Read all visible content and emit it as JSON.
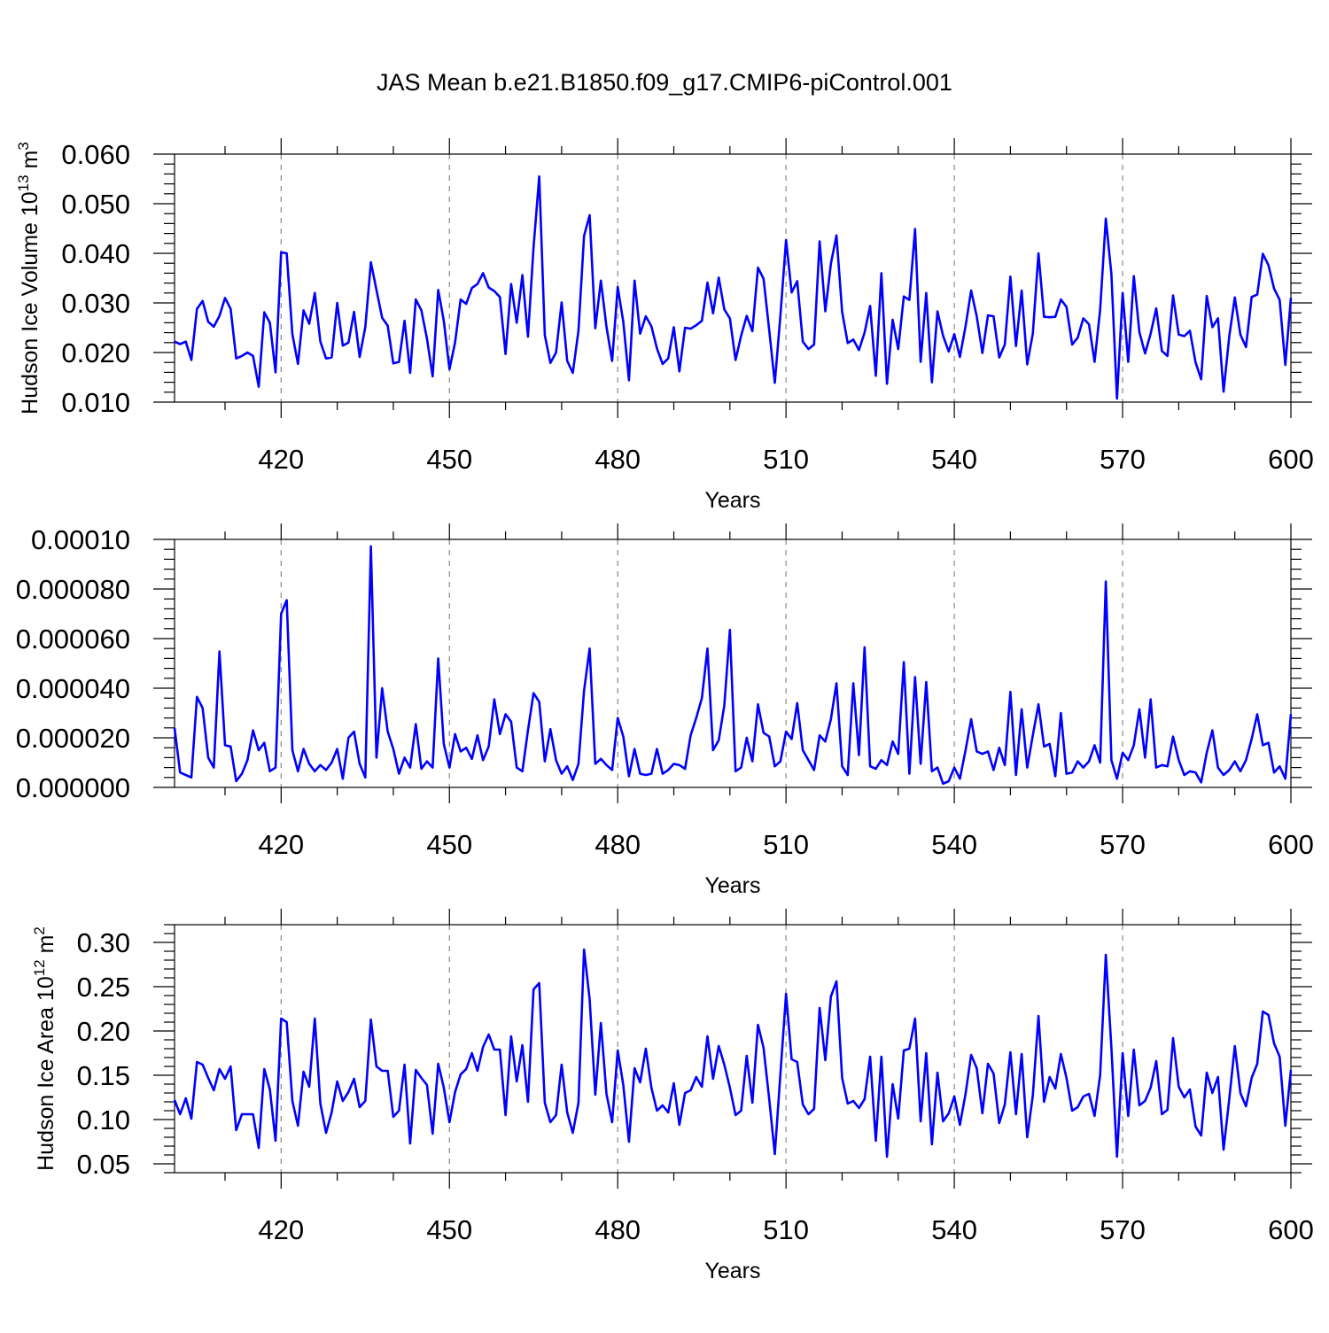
{
  "figure": {
    "title": "JAS Mean b.e21.B1850.f09_g17.CMIP6-piControl.001",
    "line_color": "#0000ff"
  },
  "chart_data": [
    {
      "type": "line",
      "title": "",
      "xlabel": "Years",
      "ylabel": "Hudson Ice Volume 10",
      "ylabel_sup": "13",
      "ylabel_unit": " m",
      "ylabel_unit_sup": "3",
      "xlim": [
        401,
        600
      ],
      "ylim": [
        0.01,
        0.06
      ],
      "xticks": [
        420,
        450,
        480,
        510,
        540,
        570,
        600
      ],
      "xtick_labels": [
        "420",
        "450",
        "480",
        "510",
        "540",
        "570",
        "600"
      ],
      "yticks": [
        0.01,
        0.02,
        0.03,
        0.04,
        0.05,
        0.06
      ],
      "ytick_labels": [
        "0.010",
        "0.020",
        "0.030",
        "0.040",
        "0.050",
        "0.060"
      ],
      "grid": "vertical dashed at major x ticks",
      "x_start": 401,
      "series": [
        {
          "values": [
            0.0222,
            0.0217,
            0.0222,
            0.0185,
            0.0288,
            0.0304,
            0.0262,
            0.0252,
            0.0274,
            0.031,
            0.0288,
            0.0188,
            0.0193,
            0.02,
            0.0193,
            0.0131,
            0.0281,
            0.026,
            0.016,
            0.0402,
            0.04,
            0.0237,
            0.0177,
            0.0285,
            0.0258,
            0.032,
            0.0222,
            0.0188,
            0.019,
            0.03,
            0.0214,
            0.022,
            0.0282,
            0.0191,
            0.0251,
            0.0382,
            0.0326,
            0.027,
            0.0254,
            0.0178,
            0.0181,
            0.0264,
            0.0159,
            0.0307,
            0.0285,
            0.0228,
            0.0152,
            0.0326,
            0.0264,
            0.0166,
            0.022,
            0.0307,
            0.0298,
            0.033,
            0.0338,
            0.036,
            0.0331,
            0.0324,
            0.0312,
            0.0197,
            0.0338,
            0.026,
            0.0356,
            0.0232,
            0.0412,
            0.0555,
            0.0235,
            0.0179,
            0.02,
            0.0301,
            0.0183,
            0.0159,
            0.0244,
            0.0435,
            0.0477,
            0.0249,
            0.0345,
            0.0252,
            0.0183,
            0.0332,
            0.0262,
            0.0144,
            0.0345,
            0.0238,
            0.0273,
            0.0253,
            0.0208,
            0.0177,
            0.0188,
            0.0251,
            0.0162,
            0.025,
            0.0248,
            0.0255,
            0.0264,
            0.0341,
            0.0279,
            0.0351,
            0.0287,
            0.0269,
            0.0185,
            0.0234,
            0.0274,
            0.0243,
            0.0371,
            0.0349,
            0.0245,
            0.0139,
            0.0274,
            0.0427,
            0.0321,
            0.0344,
            0.0222,
            0.0207,
            0.0216,
            0.0424,
            0.0283,
            0.0379,
            0.0436,
            0.0282,
            0.0219,
            0.0226,
            0.0205,
            0.024,
            0.0294,
            0.0153,
            0.036,
            0.0137,
            0.0266,
            0.0207,
            0.0313,
            0.0306,
            0.0449,
            0.0181,
            0.032,
            0.014,
            0.0283,
            0.0234,
            0.0202,
            0.0237,
            0.0191,
            0.0253,
            0.0325,
            0.0273,
            0.0199,
            0.0275,
            0.0273,
            0.019,
            0.0216,
            0.0353,
            0.0213,
            0.0325,
            0.0176,
            0.0238,
            0.04,
            0.0272,
            0.0271,
            0.0272,
            0.0307,
            0.0292,
            0.0216,
            0.023,
            0.0269,
            0.0257,
            0.0181,
            0.0286,
            0.047,
            0.0358,
            0.0107,
            0.032,
            0.0181,
            0.0354,
            0.0241,
            0.0198,
            0.0238,
            0.0289,
            0.0203,
            0.0193,
            0.0315,
            0.0236,
            0.0233,
            0.0244,
            0.018,
            0.0146,
            0.0314,
            0.0251,
            0.0269,
            0.0121,
            0.0232,
            0.0311,
            0.0236,
            0.0211,
            0.0312,
            0.0317,
            0.0399,
            0.0376,
            0.0329,
            0.0306,
            0.0175,
            0.031
          ]
        }
      ]
    },
    {
      "type": "line",
      "title": "",
      "xlabel": "Years",
      "ylabel": "",
      "xlim": [
        401,
        600
      ],
      "ylim": [
        0.0,
        0.0001
      ],
      "xticks": [
        420,
        450,
        480,
        510,
        540,
        570,
        600
      ],
      "xtick_labels": [
        "420",
        "450",
        "480",
        "510",
        "540",
        "570",
        "600"
      ],
      "yticks": [
        0.0,
        2e-05,
        4e-05,
        6e-05,
        8e-05,
        0.0001
      ],
      "ytick_labels": [
        "0.000000",
        "0.000020",
        "0.000040",
        "0.000060",
        "0.000080",
        "0.00010"
      ],
      "grid": "vertical dashed at major x ticks",
      "x_start": 401,
      "series": [
        {
          "values": [
            2.4e-05,
            6e-06,
            5e-06,
            4e-06,
            3.65e-05,
            3.2e-05,
            1.2e-05,
            8e-06,
            5.48e-05,
            1.7e-05,
            1.65e-05,
            2.5e-06,
            5.5e-06,
            1.1e-05,
            2.3e-05,
            1.5e-05,
            1.8e-05,
            6.5e-06,
            8e-06,
            7e-05,
            7.55e-05,
            1.5e-05,
            6.5e-06,
            1.55e-05,
            9.5e-06,
            6.5e-06,
            9e-06,
            7e-06,
            1e-05,
            1.55e-05,
            3.5e-06,
            2e-05,
            2.25e-05,
            9.5e-06,
            4e-06,
            9.72e-05,
            1.2e-05,
            4e-05,
            2.25e-05,
            1.55e-05,
            5.5e-06,
            1.2e-05,
            8e-06,
            2.55e-05,
            7.5e-06,
            1.05e-05,
            8e-06,
            5.2e-05,
            1.75e-05,
            8e-06,
            2.15e-05,
            1.45e-05,
            1.6e-05,
            1.15e-05,
            2.1e-05,
            1.1e-05,
            1.65e-05,
            3.55e-05,
            2.15e-05,
            2.95e-05,
            2.65e-05,
            8e-06,
            6.5e-06,
            2.3e-05,
            3.8e-05,
            3.45e-05,
            1.05e-05,
            2.35e-05,
            1.1e-05,
            5.5e-06,
            8.5e-06,
            3e-06,
            9.5e-06,
            3.9e-05,
            5.6e-05,
            9.5e-06,
            1.15e-05,
            9e-06,
            7e-06,
            2.8e-05,
            2.05e-05,
            4.5e-06,
            1.55e-05,
            5.5e-06,
            5e-06,
            5.5e-06,
            1.55e-05,
            5.5e-06,
            7e-06,
            9.5e-06,
            9e-06,
            7.5e-06,
            2.1e-05,
            2.8e-05,
            3.6e-05,
            5.6e-05,
            1.5e-05,
            1.9e-05,
            3.3e-05,
            6.35e-05,
            6.5e-06,
            8e-06,
            2e-05,
            1.05e-05,
            3.35e-05,
            2.2e-05,
            2.05e-05,
            8.5e-06,
            1.05e-05,
            2.25e-05,
            1.95e-05,
            3.4e-05,
            1.5e-05,
            1.1e-05,
            7e-06,
            2.1e-05,
            1.85e-05,
            2.75e-05,
            4.2e-05,
            8.5e-06,
            5e-06,
            4.2e-05,
            1.3e-05,
            5.65e-05,
            8.5e-06,
            7.5e-06,
            1.1e-05,
            9e-06,
            1.85e-05,
            1.35e-05,
            5.05e-05,
            5.5e-06,
            4.45e-05,
            9.5e-06,
            4.25e-05,
            6.5e-06,
            8e-06,
            1.5e-06,
            2.5e-06,
            8e-06,
            3.5e-06,
            1.5e-05,
            2.75e-05,
            1.45e-05,
            1.35e-05,
            1.45e-05,
            7e-06,
            1.6e-05,
            9e-06,
            3.85e-05,
            5e-06,
            3.15e-05,
            8e-06,
            2.1e-05,
            3.35e-05,
            1.65e-05,
            1.75e-05,
            4.5e-06,
            3e-05,
            5.5e-06,
            6e-06,
            1.05e-05,
            8e-06,
            1.05e-05,
            1.7e-05,
            1e-05,
            8.3e-05,
            1.1e-05,
            3.5e-06,
            1.4e-05,
            1.1e-05,
            1.7e-05,
            3.15e-05,
            1.2e-05,
            3.55e-05,
            8e-06,
            9e-06,
            8.5e-06,
            2.05e-05,
            1.1e-05,
            5e-06,
            6.5e-06,
            6e-06,
            2e-06,
            1.4e-05,
            2.3e-05,
            8e-06,
            5e-06,
            7e-06,
            1.05e-05,
            6.5e-06,
            1.1e-05,
            1.95e-05,
            2.95e-05,
            1.7e-05,
            1.8e-05,
            6e-06,
            8.5e-06,
            3.5e-06,
            2.95e-05
          ]
        }
      ]
    },
    {
      "type": "line",
      "title": "",
      "xlabel": "Years",
      "ylabel": "Hudson Ice Area 10",
      "ylabel_sup": "12",
      "ylabel_unit": " m",
      "ylabel_unit_sup": "2",
      "xlim": [
        401,
        600
      ],
      "ylim": [
        0.04,
        0.32
      ],
      "xticks": [
        420,
        450,
        480,
        510,
        540,
        570,
        600
      ],
      "xtick_labels": [
        "420",
        "450",
        "480",
        "510",
        "540",
        "570",
        "600"
      ],
      "yticks": [
        0.05,
        0.1,
        0.15,
        0.2,
        0.25,
        0.3
      ],
      "ytick_labels": [
        "0.05",
        "0.10",
        "0.15",
        "0.20",
        "0.25",
        "0.30"
      ],
      "grid": "vertical dashed at major x ticks",
      "x_start": 401,
      "series": [
        {
          "values": [
            0.122,
            0.106,
            0.124,
            0.101,
            0.165,
            0.162,
            0.147,
            0.133,
            0.157,
            0.146,
            0.16,
            0.088,
            0.106,
            0.106,
            0.106,
            0.068,
            0.157,
            0.134,
            0.076,
            0.214,
            0.21,
            0.121,
            0.093,
            0.154,
            0.137,
            0.214,
            0.118,
            0.085,
            0.108,
            0.143,
            0.121,
            0.131,
            0.146,
            0.114,
            0.121,
            0.213,
            0.16,
            0.155,
            0.155,
            0.103,
            0.11,
            0.162,
            0.073,
            0.156,
            0.147,
            0.139,
            0.084,
            0.163,
            0.136,
            0.097,
            0.131,
            0.151,
            0.157,
            0.175,
            0.155,
            0.182,
            0.196,
            0.179,
            0.179,
            0.105,
            0.194,
            0.143,
            0.184,
            0.12,
            0.247,
            0.254,
            0.119,
            0.097,
            0.105,
            0.162,
            0.108,
            0.085,
            0.119,
            0.292,
            0.236,
            0.128,
            0.209,
            0.129,
            0.097,
            0.178,
            0.139,
            0.075,
            0.158,
            0.142,
            0.18,
            0.136,
            0.11,
            0.116,
            0.108,
            0.141,
            0.094,
            0.13,
            0.133,
            0.148,
            0.137,
            0.194,
            0.146,
            0.183,
            0.162,
            0.136,
            0.105,
            0.11,
            0.172,
            0.119,
            0.207,
            0.181,
            0.123,
            0.061,
            0.151,
            0.242,
            0.168,
            0.165,
            0.117,
            0.106,
            0.112,
            0.226,
            0.167,
            0.239,
            0.256,
            0.147,
            0.118,
            0.121,
            0.113,
            0.123,
            0.171,
            0.076,
            0.171,
            0.058,
            0.14,
            0.101,
            0.178,
            0.18,
            0.214,
            0.098,
            0.175,
            0.072,
            0.153,
            0.098,
            0.107,
            0.126,
            0.094,
            0.129,
            0.173,
            0.158,
            0.107,
            0.163,
            0.152,
            0.096,
            0.117,
            0.176,
            0.106,
            0.174,
            0.08,
            0.127,
            0.217,
            0.12,
            0.148,
            0.135,
            0.174,
            0.147,
            0.11,
            0.114,
            0.126,
            0.129,
            0.104,
            0.15,
            0.286,
            0.181,
            0.058,
            0.175,
            0.104,
            0.179,
            0.116,
            0.121,
            0.136,
            0.166,
            0.106,
            0.111,
            0.192,
            0.137,
            0.125,
            0.134,
            0.092,
            0.082,
            0.153,
            0.13,
            0.148,
            0.066,
            0.123,
            0.183,
            0.13,
            0.115,
            0.147,
            0.163,
            0.222,
            0.218,
            0.186,
            0.171,
            0.093,
            0.156
          ]
        }
      ]
    }
  ]
}
